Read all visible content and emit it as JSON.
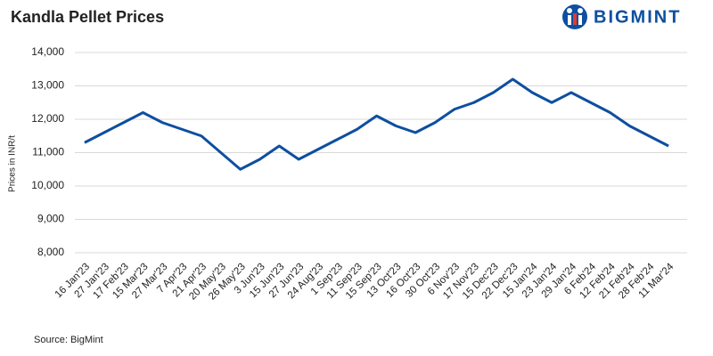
{
  "chart_data": {
    "type": "line",
    "title": "Kandla Pellet Prices",
    "brand": "BIGMINT",
    "y_label": "Prices in INR/t",
    "source": "Source: BigMint",
    "categories": [
      "16 Jan'23",
      "27 Jan'23",
      "17 Feb'23",
      "15 Mar'23",
      "27 Mar'23",
      "7 Apr'23",
      "21 Apr'23",
      "20 May'23",
      "26 May'23",
      "3 Jun'23",
      "15 Jun'23",
      "27 Jun'23",
      "24 Aug'23",
      "1 Sep'23",
      "11 Sep'23",
      "15 Sep'23",
      "13 Oct'23",
      "16 Oct'23",
      "30 Oct'23",
      "6 Nov'23",
      "17 Nov'23",
      "15 Dec'23",
      "22 Dec'23",
      "15 Jan'24",
      "23 Jan'24",
      "29 Jan'24",
      "6 Feb'24",
      "12 Feb'24",
      "21 Feb'24",
      "28 Feb'24",
      "11 Mar'24"
    ],
    "values": [
      11300,
      11600,
      11900,
      12200,
      11900,
      11700,
      11500,
      11000,
      10500,
      10800,
      11200,
      10800,
      11100,
      11400,
      11700,
      12100,
      11800,
      11600,
      11900,
      12300,
      12500,
      12800,
      13200,
      12800,
      12500,
      12800,
      12500,
      12200,
      11800,
      11500,
      11200
    ],
    "color": "#0d4fa0",
    "ylim": [
      8000,
      14000
    ],
    "yticks": [
      {
        "value": 8000,
        "label": "8,000"
      },
      {
        "value": 9000,
        "label": "9,000"
      },
      {
        "value": 10000,
        "label": "10,000"
      },
      {
        "value": 11000,
        "label": "11,000"
      },
      {
        "value": 12000,
        "label": "12,000"
      },
      {
        "value": 13000,
        "label": "13,000"
      },
      {
        "value": 14000,
        "label": "14,000"
      }
    ],
    "grid": true
  }
}
